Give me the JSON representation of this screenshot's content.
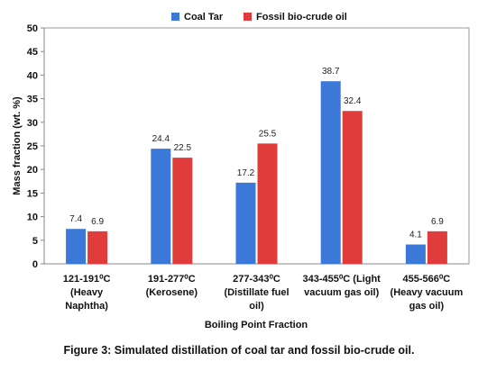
{
  "chart_data": {
    "type": "bar",
    "categories": [
      [
        "121-191⁰C",
        "(Heavy",
        "Naphtha)"
      ],
      [
        "191-277⁰C",
        "(Kerosene)"
      ],
      [
        "277-343⁰C",
        "(Distillate fuel",
        "oil)"
      ],
      [
        "343-455⁰C (Light",
        "vacuum gas oil)"
      ],
      [
        "455-566⁰C",
        "(Heavy vacuum",
        "gas oil)"
      ]
    ],
    "series": [
      {
        "name": "Coal Tar",
        "color": "#3b78d8",
        "values": [
          7.4,
          24.4,
          17.2,
          38.7,
          4.1
        ]
      },
      {
        "name": "Fossil bio-crude oil",
        "color": "#e03c3c",
        "values": [
          6.9,
          22.5,
          25.5,
          32.4,
          6.9
        ]
      }
    ],
    "xlabel": "Boiling Point Fraction",
    "ylabel": "Mass fraction (wt. %)",
    "ylim": [
      0,
      50
    ],
    "yticks": [
      0,
      5,
      10,
      15,
      20,
      25,
      30,
      35,
      40,
      45,
      50
    ],
    "grid": false,
    "legend": "top"
  },
  "caption": "Figure 3: Simulated distillation of coal tar and fossil bio-crude oil."
}
